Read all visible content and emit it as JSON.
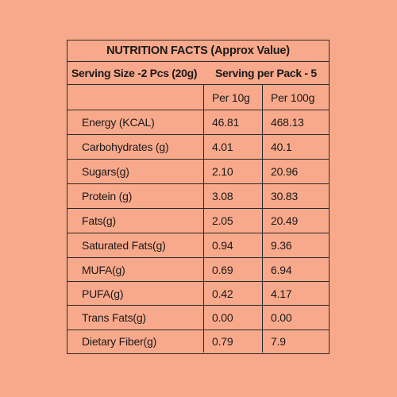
{
  "title": "NUTRITION FACTS (Approx Value)",
  "serving": {
    "size": "Serving Size -2 Pcs (20g)",
    "per_pack": "Serving per Pack - 5"
  },
  "columns": {
    "per_10g": "Per 10g",
    "per_100g": "Per 100g"
  },
  "rows": [
    {
      "name": "Energy (KCAL)",
      "per_10g": "46.81",
      "per_100g": "468.13"
    },
    {
      "name": "Carbohydrates (g)",
      "per_10g": "4.01",
      "per_100g": "40.1"
    },
    {
      "name": "Sugars(g)",
      "per_10g": "2.10",
      "per_100g": "20.96"
    },
    {
      "name": "Protein (g)",
      "per_10g": "3.08",
      "per_100g": "30.83"
    },
    {
      "name": "Fats(g)",
      "per_10g": "2.05",
      "per_100g": "20.49"
    },
    {
      "name": "Saturated Fats(g)",
      "per_10g": "0.94",
      "per_100g": "9.36"
    },
    {
      "name": "MUFA(g)",
      "per_10g": "0.69",
      "per_100g": "6.94"
    },
    {
      "name": "PUFA(g)",
      "per_10g": "0.42",
      "per_100g": "4.17"
    },
    {
      "name": "Trans Fats(g)",
      "per_10g": "0.00",
      "per_100g": "0.00"
    },
    {
      "name": "Dietary Fiber(g)",
      "per_10g": "0.79",
      "per_100g": "7.9"
    }
  ]
}
